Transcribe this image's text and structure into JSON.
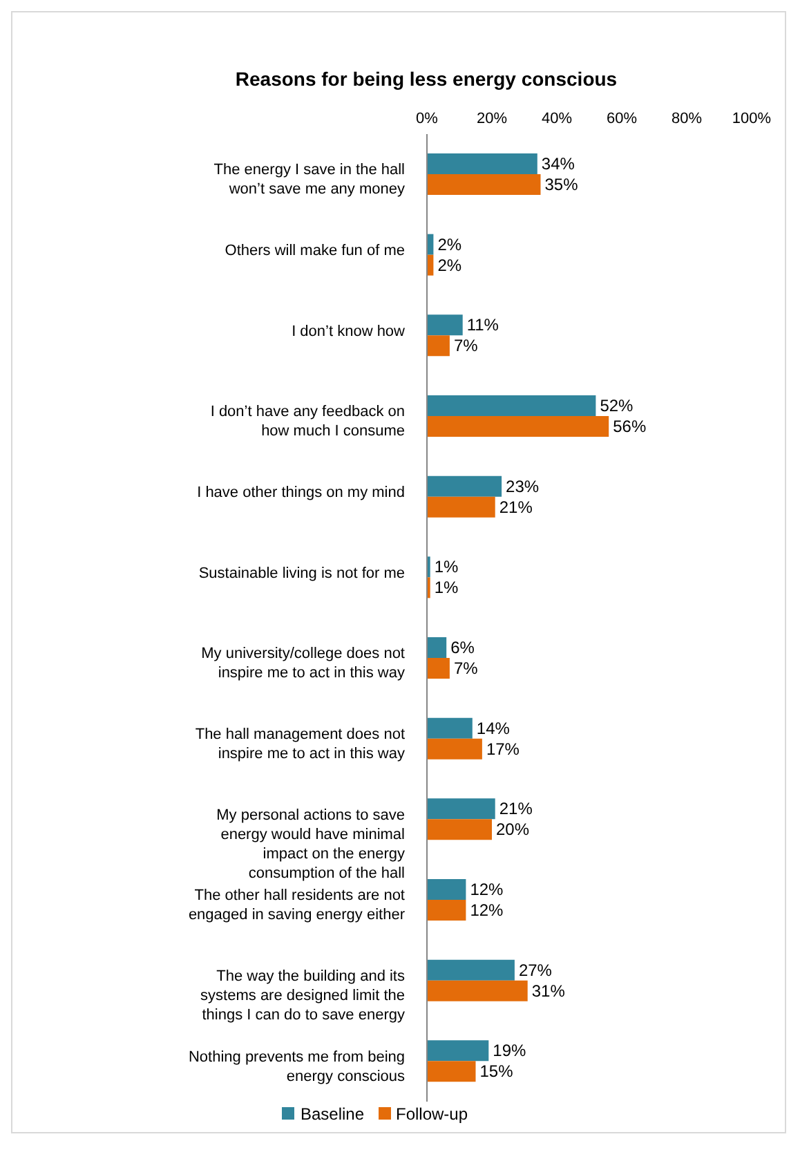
{
  "chart_data": {
    "type": "bar",
    "orientation": "horizontal",
    "title": "Reasons for being less energy conscious",
    "categories": [
      "The energy I save in the hall won’t save me any money",
      "Others will make fun of me",
      "I don’t know how",
      "I don’t have any feedback on how much I consume",
      "I have other things on my mind",
      "Sustainable living is not for me",
      "My university/college does not inspire me to act in this way",
      "The hall management does not inspire me to act in this way",
      "My personal actions to save energy would have minimal impact on the energy consumption of the hall",
      "The other hall residents are not engaged in saving energy either",
      "The way the building and its systems are designed limit the things I can do to save energy",
      "Nothing prevents me from being energy conscious"
    ],
    "series": [
      {
        "name": "Baseline",
        "color": "#31859c",
        "values": [
          34,
          2,
          11,
          52,
          23,
          1,
          6,
          14,
          21,
          12,
          27,
          19
        ],
        "value_labels": [
          "34%",
          "2%",
          "11%",
          "52%",
          "23%",
          "1%",
          "6%",
          "14%",
          "21%",
          "12%",
          "27%",
          "19%"
        ]
      },
      {
        "name": "Follow-up",
        "color": "#e46c0a",
        "values": [
          35,
          2,
          7,
          56,
          21,
          1,
          7,
          17,
          20,
          12,
          31,
          15
        ],
        "value_labels": [
          "35%",
          "2%",
          "7%",
          "56%",
          "21%",
          "1%",
          "7%",
          "17%",
          "20%",
          "12%",
          "31%",
          "15%"
        ]
      }
    ],
    "xlim": [
      0,
      100
    ],
    "xticks": [
      {
        "value": 0,
        "label": "0%"
      },
      {
        "value": 20,
        "label": "20%"
      },
      {
        "value": 40,
        "label": "40%"
      },
      {
        "value": 60,
        "label": "60%"
      },
      {
        "value": 80,
        "label": "80%"
      },
      {
        "value": 100,
        "label": "100%"
      }
    ],
    "legend": "bottom"
  }
}
